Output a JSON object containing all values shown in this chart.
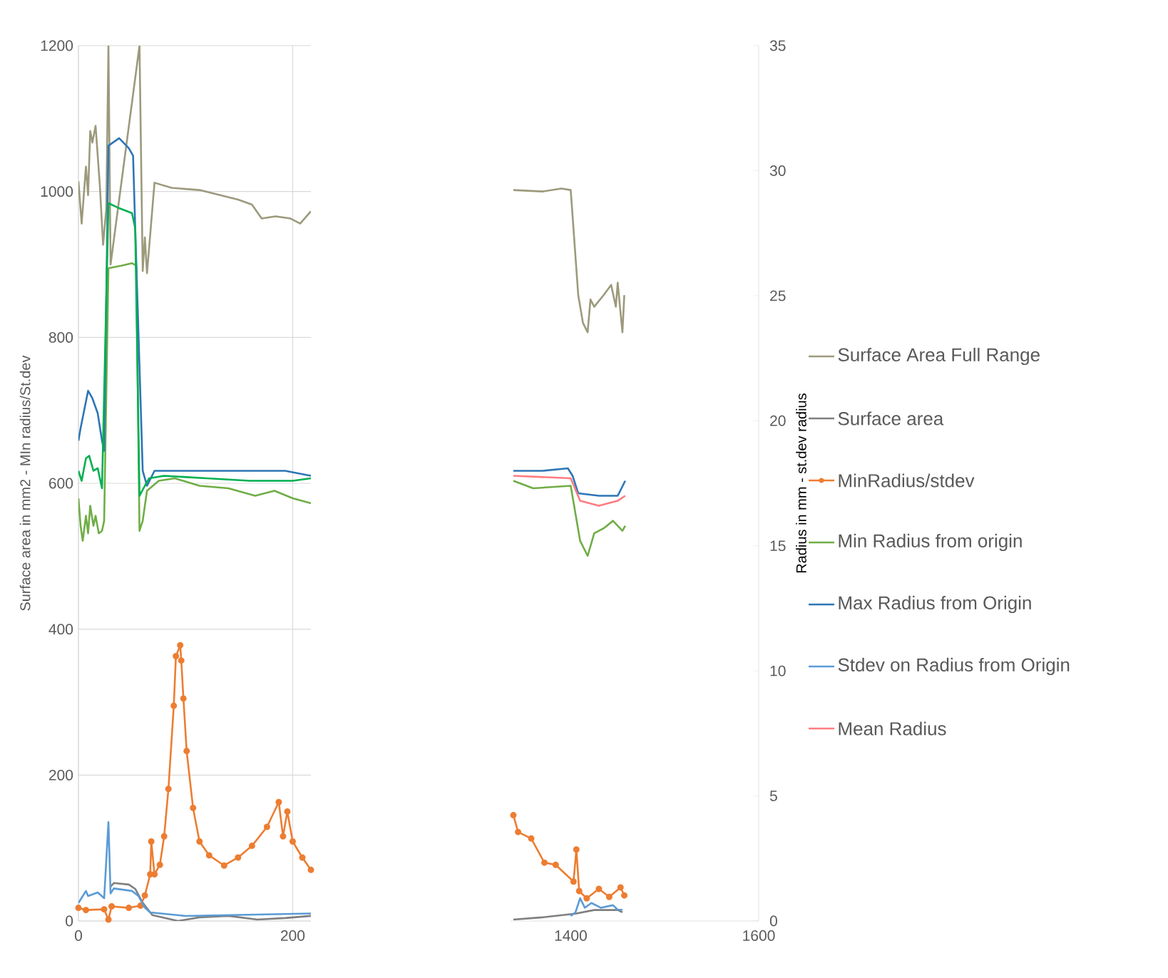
{
  "chart_data": [
    {
      "type": "line",
      "xlim": [
        0,
        217
      ],
      "xticks": [
        0,
        200
      ],
      "ylim": [
        0,
        1200
      ],
      "yticks": [
        0,
        200,
        400,
        600,
        800,
        1000,
        1200
      ],
      "ylabel": "Surface area in mm2 - MIn radius/St.dev",
      "grid": true,
      "series": [
        {
          "color": "#9c9a7c",
          "x": [
            0,
            3,
            7,
            9,
            11,
            13,
            16,
            20,
            23,
            26,
            28,
            30,
            57,
            60,
            62,
            64,
            71,
            87,
            113,
            149,
            162,
            171,
            184,
            198,
            207,
            217
          ],
          "values": [
            1014,
            956,
            1034,
            995,
            1083,
            1067,
            1090,
            1008,
            927,
            976,
            1200,
            900,
            1200,
            891,
            937,
            888,
            1012,
            1005,
            1002,
            989,
            982,
            963,
            966,
            963,
            956,
            973
          ]
        },
        {
          "color": "#7f7f7f",
          "x": [
            30,
            33,
            47,
            53,
            60,
            69,
            93,
            113,
            140,
            167,
            193,
            217
          ],
          "values": [
            47,
            52,
            50,
            44,
            25,
            8,
            0,
            5,
            7,
            2,
            4,
            7
          ]
        },
        {
          "color": "#ed7d31",
          "marker": "circle",
          "x": [
            0,
            7,
            24,
            28,
            31,
            47,
            58,
            62,
            67,
            68,
            71,
            76,
            80,
            84,
            89,
            91,
            95,
            96,
            98,
            101,
            107,
            113,
            122,
            136,
            149,
            162,
            176,
            187,
            191,
            195,
            200,
            209,
            217
          ],
          "values": [
            18,
            15,
            16,
            2,
            20,
            18,
            21,
            35,
            64,
            109,
            64,
            77,
            116,
            181,
            295,
            363,
            378,
            357,
            305,
            233,
            155,
            109,
            90,
            76,
            87,
            103,
            129,
            163,
            116,
            150,
            109,
            87,
            70
          ]
        }
      ]
    },
    {
      "type": "line",
      "xlim": [
        0,
        217
      ],
      "xticks": [
        0,
        200
      ],
      "ylim": [
        0,
        35
      ],
      "yticks": [
        0,
        5,
        10,
        15,
        20,
        25,
        30,
        35
      ],
      "tick_labels": false,
      "series": [
        {
          "color": "#70ad47",
          "x": [
            0,
            2,
            4,
            7,
            9,
            11,
            14,
            16,
            19,
            22,
            24,
            28,
            40,
            50,
            54,
            57,
            60,
            64,
            75,
            90,
            113,
            140,
            165,
            183,
            200,
            217
          ],
          "values": [
            16.9,
            15.8,
            15.2,
            16.2,
            15.5,
            16.6,
            15.8,
            16.2,
            15.5,
            15.6,
            16.0,
            26.1,
            26.2,
            26.3,
            26.2,
            15.6,
            16.0,
            17.2,
            17.6,
            17.7,
            17.4,
            17.3,
            17.0,
            17.2,
            16.9,
            16.7
          ]
        },
        {
          "color": "#2e75b6",
          "x": [
            0,
            2,
            9,
            13,
            18,
            22,
            24,
            28,
            38,
            47,
            51,
            53,
            60,
            64,
            71,
            113,
            157,
            193,
            217
          ],
          "values": [
            19.2,
            19.7,
            21.2,
            20.9,
            20.3,
            19.2,
            18.8,
            31.0,
            31.3,
            30.9,
            30.6,
            27.7,
            18.0,
            17.4,
            18.0,
            18.0,
            18.0,
            18.0,
            17.8
          ]
        },
        {
          "color": "#5b9bd5",
          "x": [
            0,
            7,
            9,
            18,
            24,
            28,
            30,
            33,
            50,
            56,
            62,
            67,
            100,
            217
          ],
          "values": [
            0.72,
            1.2,
            1.0,
            1.14,
            0.91,
            3.95,
            1.1,
            1.3,
            1.2,
            1.0,
            0.53,
            0.34,
            0.2,
            0.3
          ]
        },
        {
          "color": "#00b050",
          "x": [
            0,
            3,
            7,
            10,
            14,
            18,
            22,
            28,
            38,
            50,
            53,
            57,
            62,
            66,
            80,
            120,
            160,
            200,
            217
          ],
          "values": [
            18.0,
            17.6,
            18.5,
            18.6,
            18.0,
            18.1,
            17.3,
            28.7,
            28.5,
            28.3,
            27.7,
            17.0,
            17.4,
            17.7,
            17.8,
            17.7,
            17.6,
            17.6,
            17.7
          ]
        }
      ]
    },
    {
      "type": "line",
      "xlim": [
        1336,
        1600
      ],
      "xticks": [
        1400,
        1600
      ],
      "ylim": [
        0,
        1200
      ],
      "yticks": [
        0,
        200,
        400,
        600,
        800,
        1000,
        1200
      ],
      "tick_labels": false,
      "grid": true,
      "legend": "right",
      "series": [
        {
          "name": "Surface Area Full Range",
          "color": "#9c9a7c",
          "x": [
            1339,
            1370,
            1390,
            1400,
            1408,
            1413,
            1418,
            1421,
            1425,
            1435,
            1443,
            1448,
            1450,
            1455,
            1457
          ],
          "values": [
            1002,
            1000,
            1004,
            1002,
            858,
            820,
            807,
            852,
            842,
            858,
            872,
            842,
            875,
            807,
            858
          ]
        },
        {
          "name": "Surface area",
          "color": "#7f7f7f",
          "x": [
            1339,
            1370,
            1405,
            1425,
            1450,
            1455
          ],
          "values": [
            2,
            5,
            10,
            15,
            15,
            12
          ]
        },
        {
          "name": "MinRadius/stdev",
          "color": "#ed7d31",
          "marker": "circle",
          "x": [
            1339,
            1344,
            1358,
            1372,
            1384,
            1403,
            1406,
            1409,
            1417,
            1430,
            1441,
            1453,
            1457
          ],
          "values": [
            145,
            122,
            113,
            80,
            77,
            54,
            98,
            41,
            31,
            44,
            33,
            46,
            35
          ]
        }
      ]
    },
    {
      "type": "line",
      "xlim": [
        1336,
        1600
      ],
      "xticks": [
        1400,
        1600
      ],
      "ylim": [
        0,
        35
      ],
      "yticks": [
        0,
        5,
        10,
        15,
        20,
        25,
        30,
        35
      ],
      "ylabel": "Radius in mm - st.dev radius",
      "legend": "right",
      "series": [
        {
          "name": "Min Radius from origin",
          "color": "#70ad47",
          "x": [
            1339,
            1360,
            1400,
            1410,
            1418,
            1425,
            1435,
            1445,
            1455,
            1458
          ],
          "values": [
            17.6,
            17.3,
            17.4,
            15.2,
            14.6,
            15.5,
            15.7,
            16.0,
            15.6,
            15.8
          ]
        },
        {
          "name": "Max Radius from Origin",
          "color": "#2e75b6",
          "x": [
            1339,
            1370,
            1397,
            1402,
            1408,
            1430,
            1450,
            1458
          ],
          "values": [
            18.0,
            18.0,
            18.1,
            17.8,
            17.1,
            17.0,
            17.0,
            17.6
          ]
        },
        {
          "name": "Stdev on Radius from Origin",
          "color": "#5b9bd5",
          "x": [
            1400,
            1405,
            1410,
            1415,
            1422,
            1432,
            1445,
            1450,
            1455
          ],
          "values": [
            0.2,
            0.34,
            0.91,
            0.53,
            0.72,
            0.53,
            0.63,
            0.45,
            0.45
          ]
        },
        {
          "name": "Mean Radius",
          "color": "#ff7c80",
          "x": [
            1339,
            1400,
            1410,
            1430,
            1450,
            1458
          ],
          "values": [
            17.8,
            17.7,
            16.8,
            16.6,
            16.8,
            17.0
          ]
        }
      ]
    }
  ]
}
